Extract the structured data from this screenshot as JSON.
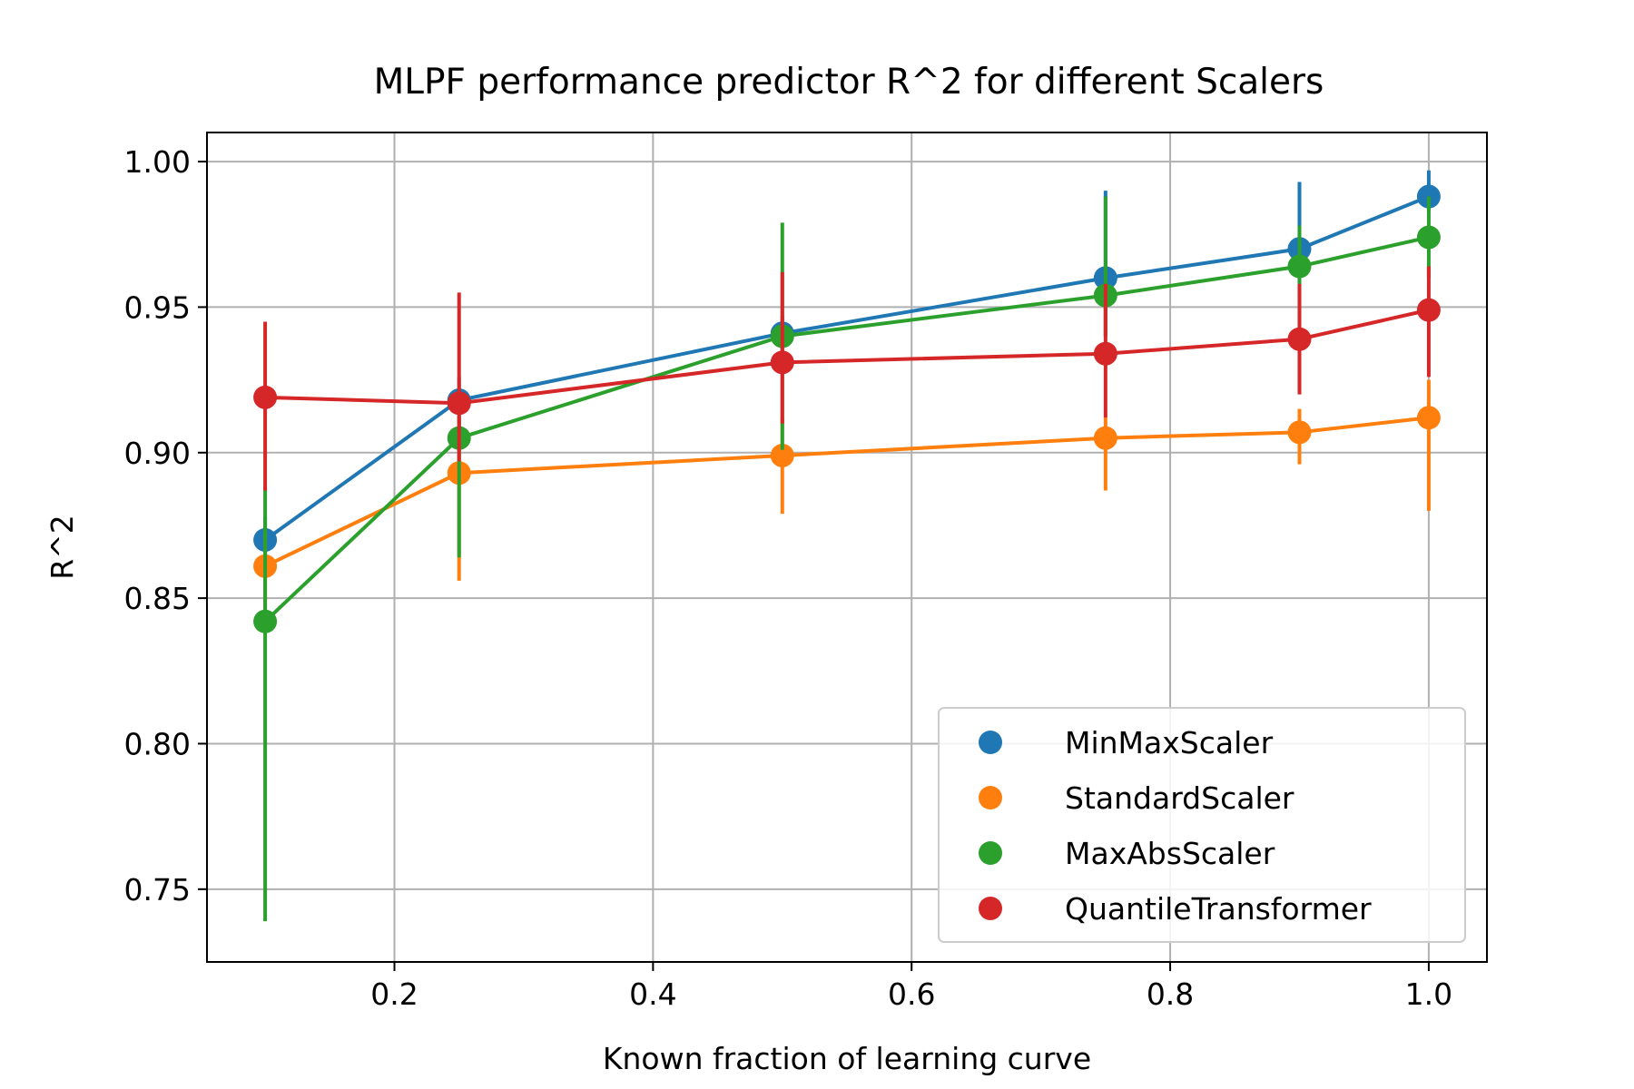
{
  "chart_data": {
    "type": "line",
    "title": "MLPF performance predictor R^2 for different Scalers",
    "xlabel": "Known fraction of learning curve",
    "ylabel": "R^2",
    "xlim": [
      0.055,
      1.045
    ],
    "ylim": [
      0.725,
      1.01
    ],
    "x_ticks": [
      0.2,
      0.4,
      0.6,
      0.8,
      1.0
    ],
    "x_tick_labels": [
      "0.2",
      "0.4",
      "0.6",
      "0.8",
      "1.0"
    ],
    "y_ticks": [
      0.75,
      0.8,
      0.85,
      0.9,
      0.95,
      1.0
    ],
    "y_tick_labels": [
      "0.75",
      "0.80",
      "0.85",
      "0.90",
      "0.95",
      "1.00"
    ],
    "grid": true,
    "legend_position": "bottom-right",
    "x": [
      0.1,
      0.25,
      0.5,
      0.75,
      0.9,
      1.0
    ],
    "series": [
      {
        "name": "MinMaxScaler",
        "color": "#1f77b4",
        "values": [
          0.87,
          0.918,
          0.941,
          0.96,
          0.97,
          0.988
        ],
        "err_low": [
          0.863,
          0.91,
          0.935,
          0.94,
          0.952,
          0.983
        ],
        "err_high": [
          0.878,
          0.926,
          0.947,
          0.99,
          0.993,
          0.997
        ]
      },
      {
        "name": "StandardScaler",
        "color": "#ff7f0e",
        "values": [
          0.861,
          0.893,
          0.899,
          0.905,
          0.907,
          0.912
        ],
        "err_low": [
          0.842,
          0.856,
          0.879,
          0.887,
          0.896,
          0.88
        ],
        "err_high": [
          0.873,
          0.912,
          0.912,
          0.912,
          0.915,
          0.925
        ]
      },
      {
        "name": "MaxAbsScaler",
        "color": "#2ca02c",
        "values": [
          0.842,
          0.905,
          0.94,
          0.954,
          0.964,
          0.974
        ],
        "err_low": [
          0.739,
          0.864,
          0.901,
          0.94,
          0.953,
          0.96
        ],
        "err_high": [
          0.888,
          0.912,
          0.979,
          0.988,
          0.978,
          0.988
        ]
      },
      {
        "name": "QuantileTransformer",
        "color": "#d62728",
        "values": [
          0.919,
          0.917,
          0.931,
          0.934,
          0.939,
          0.949
        ],
        "err_low": [
          0.887,
          0.897,
          0.91,
          0.912,
          0.92,
          0.926
        ],
        "err_high": [
          0.945,
          0.955,
          0.962,
          0.958,
          0.958,
          0.964
        ]
      }
    ]
  }
}
